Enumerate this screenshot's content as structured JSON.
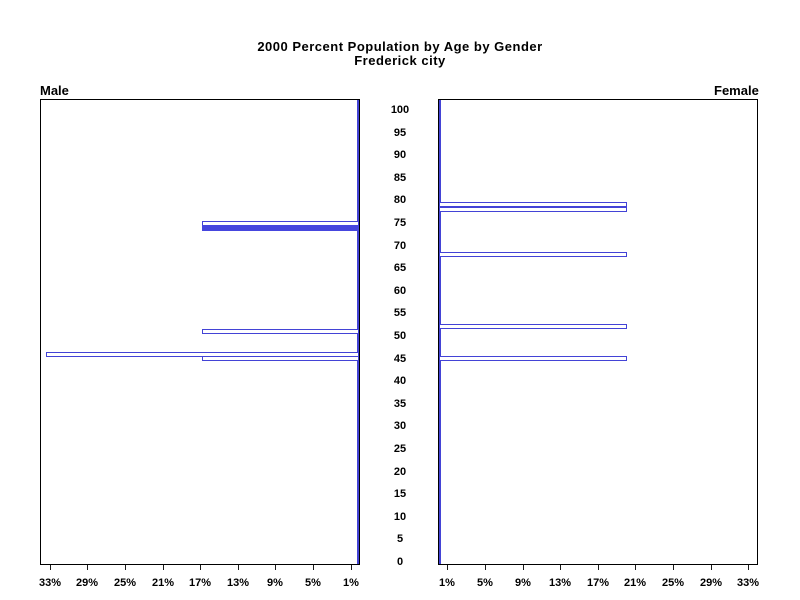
{
  "title": {
    "line1": "2000 Percent Population by Age by Gender",
    "line2": "Frederick city"
  },
  "panel_labels": {
    "male": "Male",
    "female": "Female"
  },
  "colors": {
    "bar_outline": "#4343d6",
    "bar_solid_fill": "#4646de",
    "panel_border": "#000000",
    "text": "#000000"
  },
  "chart_data": {
    "type": "bar",
    "subtype": "population-pyramid",
    "title": "2000 Percent Population by Age by Gender",
    "subtitle": "Frederick city",
    "age_axis": {
      "min": 0,
      "max": 100,
      "step": 5,
      "tick_labels": [
        "0",
        "5",
        "10",
        "15",
        "20",
        "25",
        "30",
        "35",
        "40",
        "45",
        "50",
        "55",
        "60",
        "65",
        "70",
        "75",
        "80",
        "85",
        "90",
        "95",
        "100"
      ]
    },
    "pct_axis": {
      "min": 0,
      "max": 34,
      "tick_values": [
        1,
        5,
        9,
        13,
        17,
        21,
        25,
        29,
        33
      ],
      "male_tick_labels": [
        "33%",
        "29%",
        "25%",
        "21%",
        "17%",
        "13%",
        "9%",
        "5%",
        "1%"
      ],
      "female_tick_labels": [
        "1%",
        "5%",
        "9%",
        "13%",
        "17%",
        "21%",
        "25%",
        "29%",
        "33%"
      ]
    },
    "series": [
      {
        "name": "Male",
        "side": "left",
        "bars": [
          {
            "age": 75,
            "pct": 16.7,
            "fill": "outline"
          },
          {
            "age": 74,
            "pct": 16.7,
            "fill": "solid"
          },
          {
            "age": 51,
            "pct": 16.7,
            "fill": "outline"
          },
          {
            "age": 46,
            "pct": 33.3,
            "fill": "outline"
          },
          {
            "age": 45,
            "pct": 16.7,
            "fill": "outline"
          }
        ]
      },
      {
        "name": "Female",
        "side": "right",
        "bars": [
          {
            "age": 79,
            "pct": 20,
            "fill": "outline"
          },
          {
            "age": 78,
            "pct": 20,
            "fill": "outline"
          },
          {
            "age": 68,
            "pct": 20,
            "fill": "outline"
          },
          {
            "age": 52,
            "pct": 20,
            "fill": "outline"
          },
          {
            "age": 45,
            "pct": 20,
            "fill": "outline"
          }
        ]
      }
    ],
    "layout_hints": {
      "grid": false,
      "legend": false,
      "note": "zero percent is at inner edge of each panel; thin blue zero-axis line spans full panel height"
    }
  }
}
